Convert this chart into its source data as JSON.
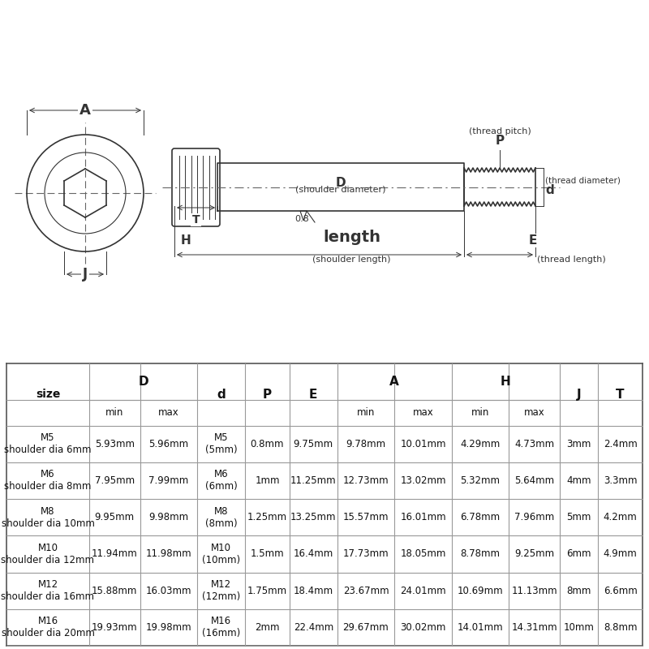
{
  "bg_color": "#ffffff",
  "rows": [
    [
      "M5\nshoulder dia 6mm",
      "5.93mm",
      "5.96mm",
      "M5\n(5mm)",
      "0.8mm",
      "9.75mm",
      "9.78mm",
      "10.01mm",
      "4.29mm",
      "4.73mm",
      "3mm",
      "2.4mm"
    ],
    [
      "M6\nshoulder dia 8mm",
      "7.95mm",
      "7.99mm",
      "M6\n(6mm)",
      "1mm",
      "11.25mm",
      "12.73mm",
      "13.02mm",
      "5.32mm",
      "5.64mm",
      "4mm",
      "3.3mm"
    ],
    [
      "M8\nshoulder dia 10mm",
      "9.95mm",
      "9.98mm",
      "M8\n(8mm)",
      "1.25mm",
      "13.25mm",
      "15.57mm",
      "16.01mm",
      "6.78mm",
      "7.96mm",
      "5mm",
      "4.2mm"
    ],
    [
      "M10\nshoulder dia 12mm",
      "11.94mm",
      "11.98mm",
      "M10\n(10mm)",
      "1.5mm",
      "16.4mm",
      "17.73mm",
      "18.05mm",
      "8.78mm",
      "9.25mm",
      "6mm",
      "4.9mm"
    ],
    [
      "M12\nshoulder dia 16mm",
      "15.88mm",
      "16.03mm",
      "M12\n(12mm)",
      "1.75mm",
      "18.4mm",
      "23.67mm",
      "24.01mm",
      "10.69mm",
      "11.13mm",
      "8mm",
      "6.6mm"
    ],
    [
      "M16\nshoulder dia 20mm",
      "19.93mm",
      "19.98mm",
      "M16\n(16mm)",
      "2mm",
      "22.4mm",
      "29.67mm",
      "30.02mm",
      "14.01mm",
      "14.31mm",
      "10mm",
      "8.8mm"
    ]
  ]
}
